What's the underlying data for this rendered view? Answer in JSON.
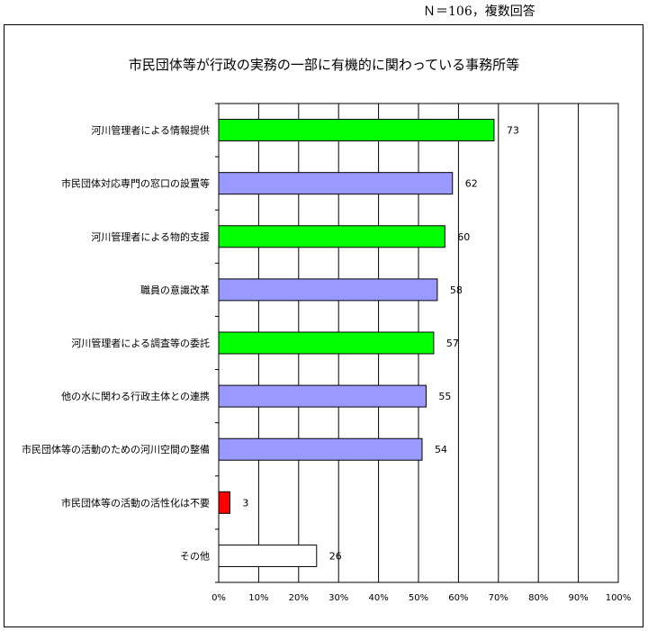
{
  "header": {
    "note": "Ｎ＝106，複数回答"
  },
  "chart_data": {
    "type": "bar",
    "orientation": "horizontal",
    "title": "市民団体等が行政の実務の一部に有機的に関わっている事務所等",
    "categories": [
      "河川管理者による情報提供",
      "市民団体対応専門の窓口の設置等",
      "河川管理者による物的支援",
      "職員の意識改革",
      "河川管理者による調査等の委託",
      "他の水に関わる行政主体との連携",
      "市民団体等の活動のための河川空間の整備",
      "市民団体等の活動の活性化は不要",
      "その他"
    ],
    "values": [
      73,
      62,
      60,
      58,
      57,
      55,
      54,
      3,
      26
    ],
    "percent_of_n": [
      68.9,
      58.5,
      56.6,
      54.7,
      53.8,
      51.9,
      50.9,
      2.8,
      24.5
    ],
    "bar_colors": [
      "#00ff00",
      "#9999ff",
      "#00ff00",
      "#9999ff",
      "#00ff00",
      "#9999ff",
      "#9999ff",
      "#ff0000",
      "#ffffff"
    ],
    "xticks": [
      "0%",
      "10%",
      "20%",
      "30%",
      "40%",
      "50%",
      "60%",
      "70%",
      "80%",
      "90%",
      "100%"
    ],
    "xlim": [
      0,
      100
    ],
    "grid": true,
    "legend": "none"
  }
}
